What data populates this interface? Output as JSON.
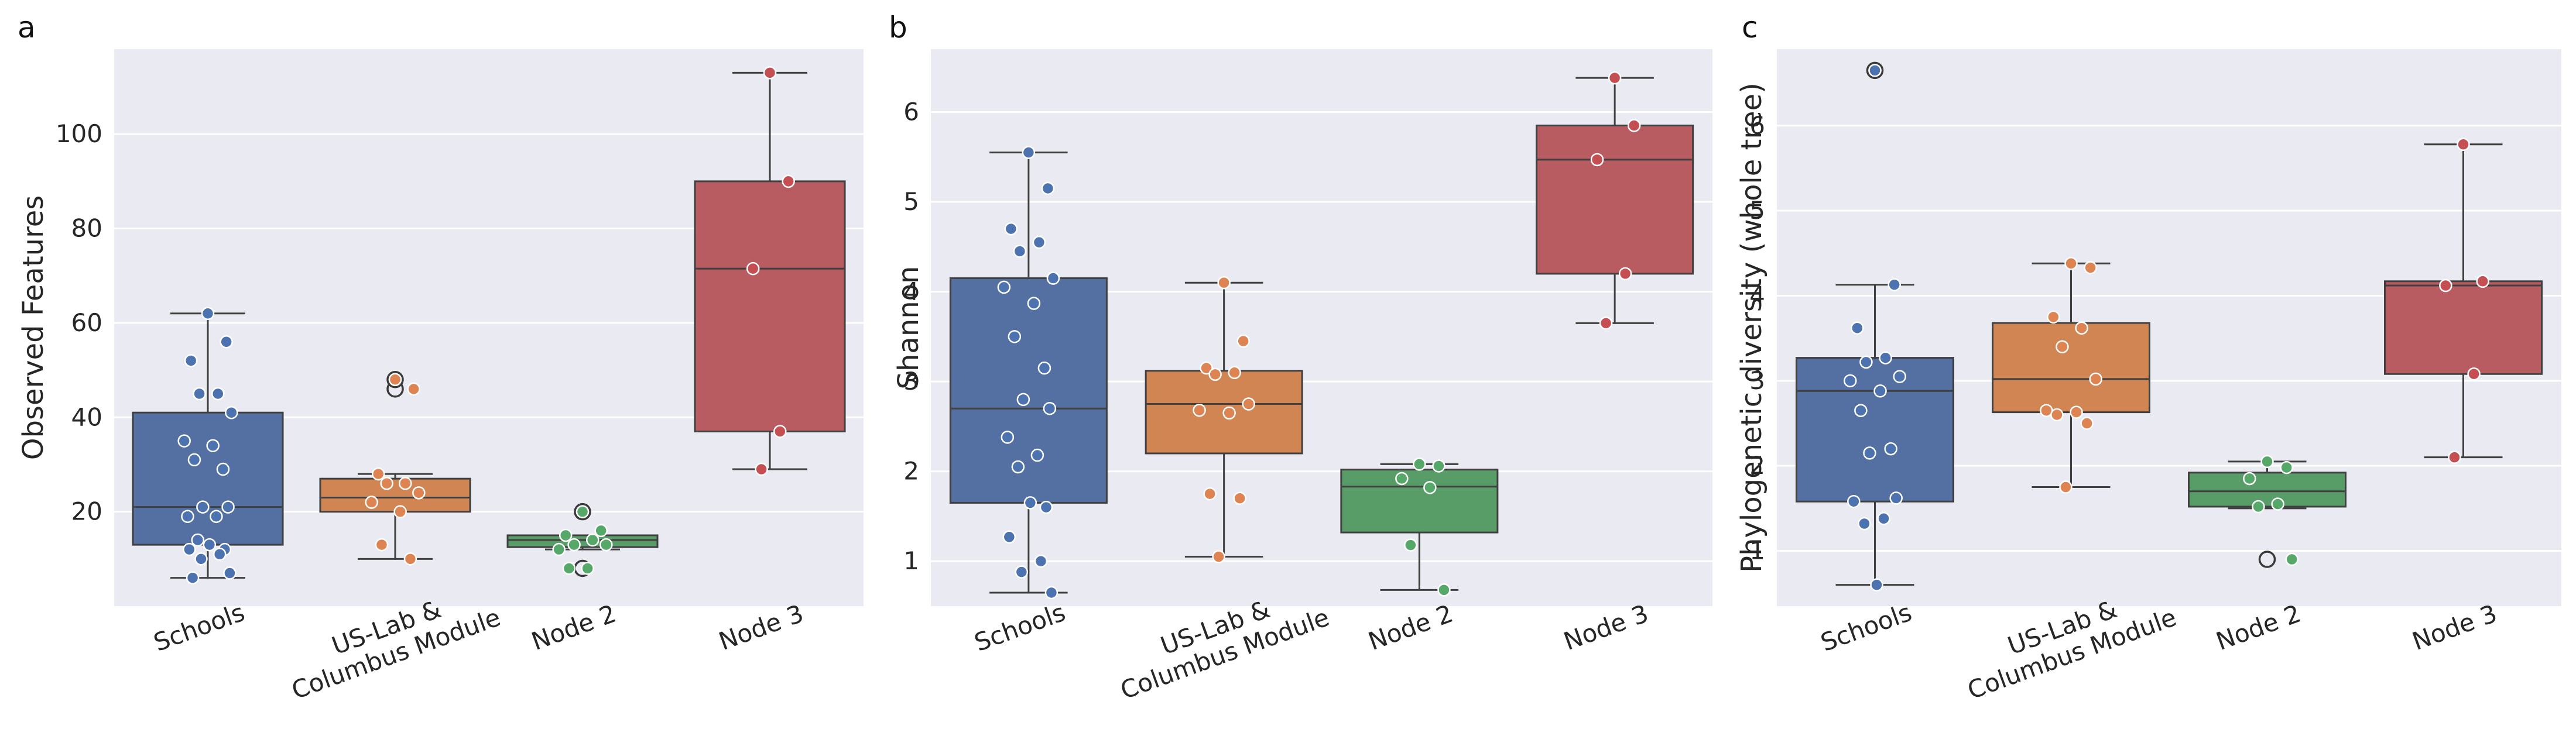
{
  "chart_data": [
    {
      "type": "box",
      "panel_label": "a",
      "ylabel": "Observed Features",
      "ylim": [
        0,
        118
      ],
      "yticks": [
        20,
        40,
        60,
        80,
        100
      ],
      "grid": true,
      "categories": [
        "Schools",
        "US-Lab &\nColumbus Module",
        "Node 2",
        "Node 3"
      ],
      "colors": [
        "#5470A3",
        "#D08552",
        "#589D68",
        "#B85C62"
      ],
      "dot_colors": [
        "#4C72B0",
        "#DD8452",
        "#55A868",
        "#C44E52"
      ],
      "boxes": [
        {
          "min": 6,
          "q1": 13,
          "median": 21,
          "q3": 41,
          "max": 62
        },
        {
          "min": 10,
          "q1": 20,
          "median": 23,
          "q3": 27,
          "max": 28
        },
        {
          "min": 12,
          "q1": 12.5,
          "median": 14,
          "q3": 15,
          "max": 15
        },
        {
          "min": 29,
          "q1": 37,
          "median": 71.5,
          "q3": 90,
          "max": 113
        }
      ],
      "outliers": [
        [],
        [
          48,
          46
        ],
        [
          20,
          8
        ],
        []
      ],
      "points": [
        [
          62,
          56,
          52,
          45,
          45,
          41,
          35,
          34,
          31,
          29,
          21,
          21,
          19,
          19,
          14,
          13,
          12,
          12,
          11,
          10,
          7,
          6
        ],
        [
          48,
          46,
          28,
          26,
          26,
          24,
          22,
          20,
          13,
          10
        ],
        [
          20,
          16,
          15,
          14,
          13,
          13,
          12,
          8,
          8
        ],
        [
          113,
          90,
          71.5,
          37,
          29
        ]
      ]
    },
    {
      "type": "box",
      "panel_label": "b",
      "ylabel": "Shannon",
      "ylim": [
        0.5,
        6.7
      ],
      "yticks": [
        1,
        2,
        3,
        4,
        5,
        6
      ],
      "grid": true,
      "categories": [
        "Schools",
        "US-Lab &\nColumbus Module",
        "Node 2",
        "Node 3"
      ],
      "colors": [
        "#5470A3",
        "#D08552",
        "#589D68",
        "#B85C62"
      ],
      "dot_colors": [
        "#4C72B0",
        "#DD8452",
        "#55A868",
        "#C44E52"
      ],
      "boxes": [
        {
          "min": 0.65,
          "q1": 1.65,
          "median": 2.7,
          "q3": 4.15,
          "max": 5.55
        },
        {
          "min": 1.05,
          "q1": 2.2,
          "median": 2.75,
          "q3": 3.12,
          "max": 4.1
        },
        {
          "min": 0.68,
          "q1": 1.32,
          "median": 1.83,
          "q3": 2.02,
          "max": 2.08
        },
        {
          "min": 3.65,
          "q1": 4.2,
          "median": 5.47,
          "q3": 5.85,
          "max": 6.38
        }
      ],
      "outliers": [
        [],
        [],
        [],
        []
      ],
      "points": [
        [
          5.55,
          5.15,
          4.7,
          4.55,
          4.45,
          4.15,
          4.05,
          3.87,
          3.5,
          3.15,
          2.8,
          2.7,
          2.38,
          2.18,
          2.05,
          1.65,
          1.6,
          1.27,
          1.0,
          0.88,
          0.65
        ],
        [
          4.1,
          3.45,
          3.15,
          3.1,
          3.08,
          2.75,
          2.68,
          2.65,
          1.75,
          1.7,
          1.05
        ],
        [
          2.08,
          2.06,
          1.92,
          1.82,
          1.18,
          0.68
        ],
        [
          6.38,
          5.85,
          5.47,
          4.2,
          3.65
        ]
      ]
    },
    {
      "type": "box",
      "panel_label": "c",
      "ylabel": "Phylogenetic diversity (whole tree)",
      "ylim": [
        0.35,
        6.9
      ],
      "yticks": [
        1,
        2,
        3,
        4,
        5,
        6
      ],
      "grid": true,
      "categories": [
        "Schools",
        "US-Lab &\nColumbus Module",
        "Node 2",
        "Node 3"
      ],
      "colors": [
        "#5470A3",
        "#D08552",
        "#589D68",
        "#B85C62"
      ],
      "dot_colors": [
        "#4C72B0",
        "#DD8452",
        "#55A868",
        "#C44E52"
      ],
      "boxes": [
        {
          "min": 0.6,
          "q1": 1.58,
          "median": 2.88,
          "q3": 3.27,
          "max": 4.13
        },
        {
          "min": 1.75,
          "q1": 2.63,
          "median": 3.02,
          "q3": 3.68,
          "max": 4.38
        },
        {
          "min": 1.5,
          "q1": 1.52,
          "median": 1.7,
          "q3": 1.92,
          "max": 2.05
        },
        {
          "min": 2.1,
          "q1": 3.08,
          "median": 4.12,
          "q3": 4.17,
          "max": 5.78
        }
      ],
      "outliers": [
        [
          6.65
        ],
        [],
        [
          0.9
        ],
        []
      ],
      "points": [
        [
          6.65,
          4.13,
          3.62,
          3.27,
          3.22,
          3.05,
          3.0,
          2.88,
          2.65,
          2.2,
          2.15,
          1.62,
          1.58,
          1.38,
          1.32,
          0.6
        ],
        [
          4.38,
          4.33,
          3.75,
          3.62,
          3.4,
          3.02,
          2.65,
          2.63,
          2.6,
          2.5,
          1.75
        ],
        [
          2.05,
          1.98,
          1.85,
          1.55,
          1.52,
          0.9
        ],
        [
          5.78,
          4.17,
          4.12,
          3.08,
          2.1
        ]
      ]
    }
  ]
}
